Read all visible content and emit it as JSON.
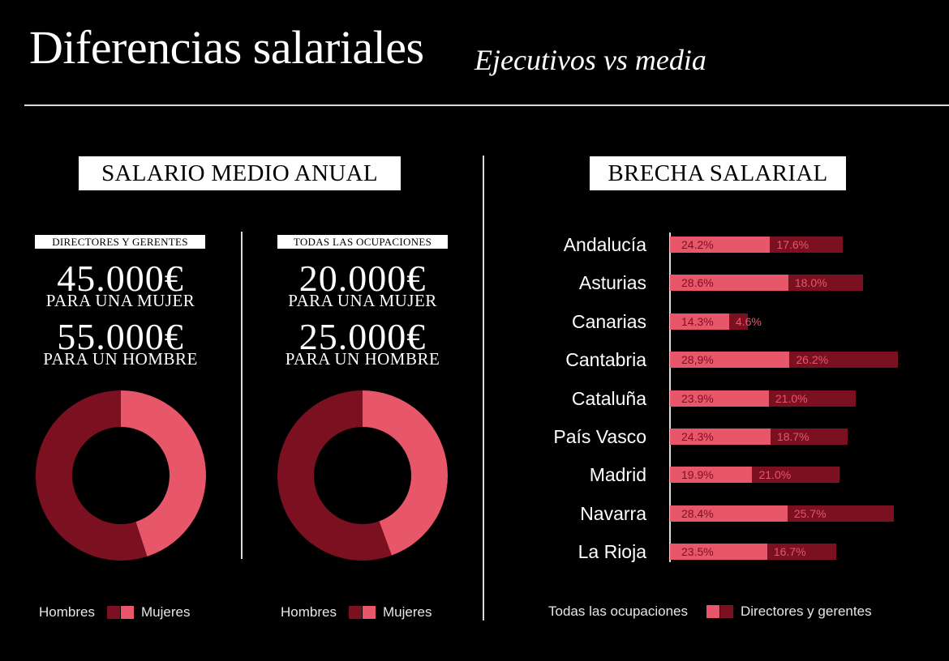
{
  "header": {
    "title": "Diferencias salariales",
    "subtitle": "Ejecutivos vs media"
  },
  "left_section": {
    "label": "SALARIO MEDIO ANUAL",
    "panels": [
      {
        "label": "DIRECTORES Y GERENTES",
        "woman_amount": "45.000€",
        "woman_caption": "PARA UNA MUJER",
        "man_amount": "55.000€",
        "man_caption": "PARA UN HOMBRE",
        "legend": {
          "men": "Hombres",
          "women": "Mujeres"
        }
      },
      {
        "label": "TODAS LAS OCUPACIONES",
        "woman_amount": "20.000€",
        "woman_caption": "PARA UNA MUJER",
        "man_amount": "25.000€",
        "man_caption": "PARA UN HOMBRE",
        "legend": {
          "men": "Hombres",
          "women": "Mujeres"
        }
      }
    ]
  },
  "right_section": {
    "label": "BRECHA SALARIAL",
    "legend": {
      "all": "Todas las ocupaciones",
      "directors": "Directores y gerentes"
    }
  },
  "colors": {
    "men": "#7a1020",
    "women": "#e8566a",
    "background": "#000000",
    "text": "#ffffff"
  },
  "chart_data": [
    {
      "type": "pie",
      "variant": "donut",
      "series": [
        {
          "name": "Hombres",
          "values": [
            55000
          ]
        },
        {
          "name": "Mujeres",
          "values": [
            45000
          ]
        }
      ]
    },
    {
      "type": "pie",
      "variant": "donut",
      "series": [
        {
          "name": "Hombres",
          "values": [
            25000
          ]
        },
        {
          "name": "Mujeres",
          "values": [
            20000
          ]
        }
      ]
    },
    {
      "type": "bar",
      "orientation": "horizontal",
      "stacked": true,
      "categories": [
        "Andalucía",
        "Asturias",
        "Canarias",
        "Cantabria",
        "Cataluña",
        "País Vasco",
        "Madrid",
        "Navarra",
        "La Rioja"
      ],
      "series": [
        {
          "name": "Todas las ocupaciones",
          "values": [
            24.2,
            28.6,
            14.3,
            28.9,
            23.9,
            24.3,
            19.9,
            28.4,
            23.5
          ],
          "labels": [
            "24.2%",
            "28.6%",
            "14.3%",
            "28,9%",
            "23.9%",
            "24.3%",
            "19.9%",
            "28.4%",
            "23.5%"
          ]
        },
        {
          "name": "Directores y gerentes",
          "values": [
            17.6,
            18.0,
            4.6,
            26.2,
            21.0,
            18.7,
            21.0,
            25.7,
            16.7
          ],
          "labels": [
            "17.6%",
            "18.0%",
            "4.6%",
            "26.2%",
            "21.0%",
            "18.7%",
            "21.0%",
            "25.7%",
            "16.7%"
          ]
        }
      ],
      "grid": false,
      "legend_position": "bottom"
    }
  ]
}
